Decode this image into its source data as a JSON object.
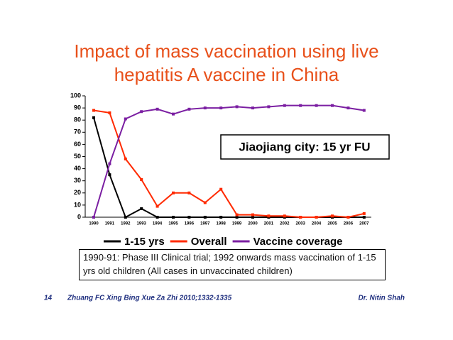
{
  "chart_data": {
    "type": "line",
    "title": "Impact of mass vaccination using live hepatitis A vaccine in China",
    "categories": [
      "1990",
      "1991",
      "1992",
      "1993",
      "1994",
      "1995",
      "1996",
      "1997",
      "1998",
      "1999",
      "2000",
      "2001",
      "2002",
      "2003",
      "2004",
      "2005",
      "2006",
      "2007"
    ],
    "series": [
      {
        "name": "1-15 yrs",
        "color": "#000000",
        "values": [
          82,
          35,
          0,
          7,
          0,
          0,
          0,
          0,
          0,
          0,
          0,
          0,
          0,
          0,
          0,
          0,
          0,
          0
        ]
      },
      {
        "name": "Overall",
        "color": "#ff2a00",
        "values": [
          88,
          86,
          48,
          31,
          9,
          20,
          20,
          12,
          23,
          2,
          2,
          1,
          1,
          0,
          0,
          1,
          0,
          3
        ]
      },
      {
        "name": "Vaccine coverage",
        "color": "#7b1fa2",
        "values": [
          0,
          44,
          81,
          87,
          89,
          85,
          89,
          90,
          90,
          91,
          90,
          91,
          92,
          92,
          92,
          92,
          90,
          88
        ]
      }
    ],
    "ylim": [
      0,
      100
    ],
    "yticks": [
      0,
      10,
      20,
      30,
      40,
      50,
      60,
      70,
      80,
      90,
      100
    ],
    "annotation": "Jiaojiang city: 15 yr FU",
    "note": "1990-91: Phase III Clinical trial; 1992 onwards mass vaccination of 1-15 yrs old children (All cases in unvaccinated children)"
  },
  "footer": {
    "slide_number": "14",
    "citation": "Zhuang FC Xing Bing Xue Za Zhi 2010;1332-1335",
    "author": "Dr. Nitin Shah"
  }
}
